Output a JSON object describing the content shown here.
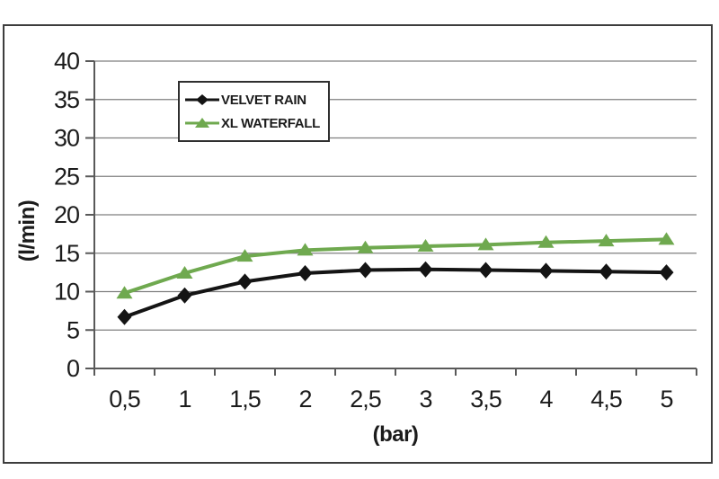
{
  "chart_data": {
    "type": "line",
    "title": "",
    "xlabel": "(bar)",
    "ylabel": "(l/min)",
    "x_values": [
      0.5,
      1,
      1.5,
      2,
      2.5,
      3,
      3.5,
      4,
      4.5,
      5
    ],
    "x_tick_labels": [
      "0,5",
      "1",
      "1,5",
      "2",
      "2,5",
      "3",
      "3,5",
      "4",
      "4,5",
      "5"
    ],
    "ylim": [
      0,
      40
    ],
    "y_tick_step": 5,
    "grid": true,
    "legend_position": "inside-top-center",
    "series": [
      {
        "name": "VELVET RAIN",
        "color": "#141414",
        "marker": "diamond",
        "values": [
          6.7,
          9.5,
          11.3,
          12.4,
          12.8,
          12.9,
          12.8,
          12.7,
          12.6,
          12.5
        ]
      },
      {
        "name": "XL WATERFALL",
        "color": "#6fa94f",
        "marker": "triangle",
        "values": [
          9.8,
          12.4,
          14.6,
          15.4,
          15.7,
          15.9,
          16.1,
          16.4,
          16.6,
          16.8
        ]
      }
    ]
  },
  "colors": {
    "background": "#ffffff",
    "frame_border": "#3d3d3d",
    "gridline": "#7f7f7f",
    "axis_line": "#595959",
    "tick_text": "#1c1c1c"
  }
}
